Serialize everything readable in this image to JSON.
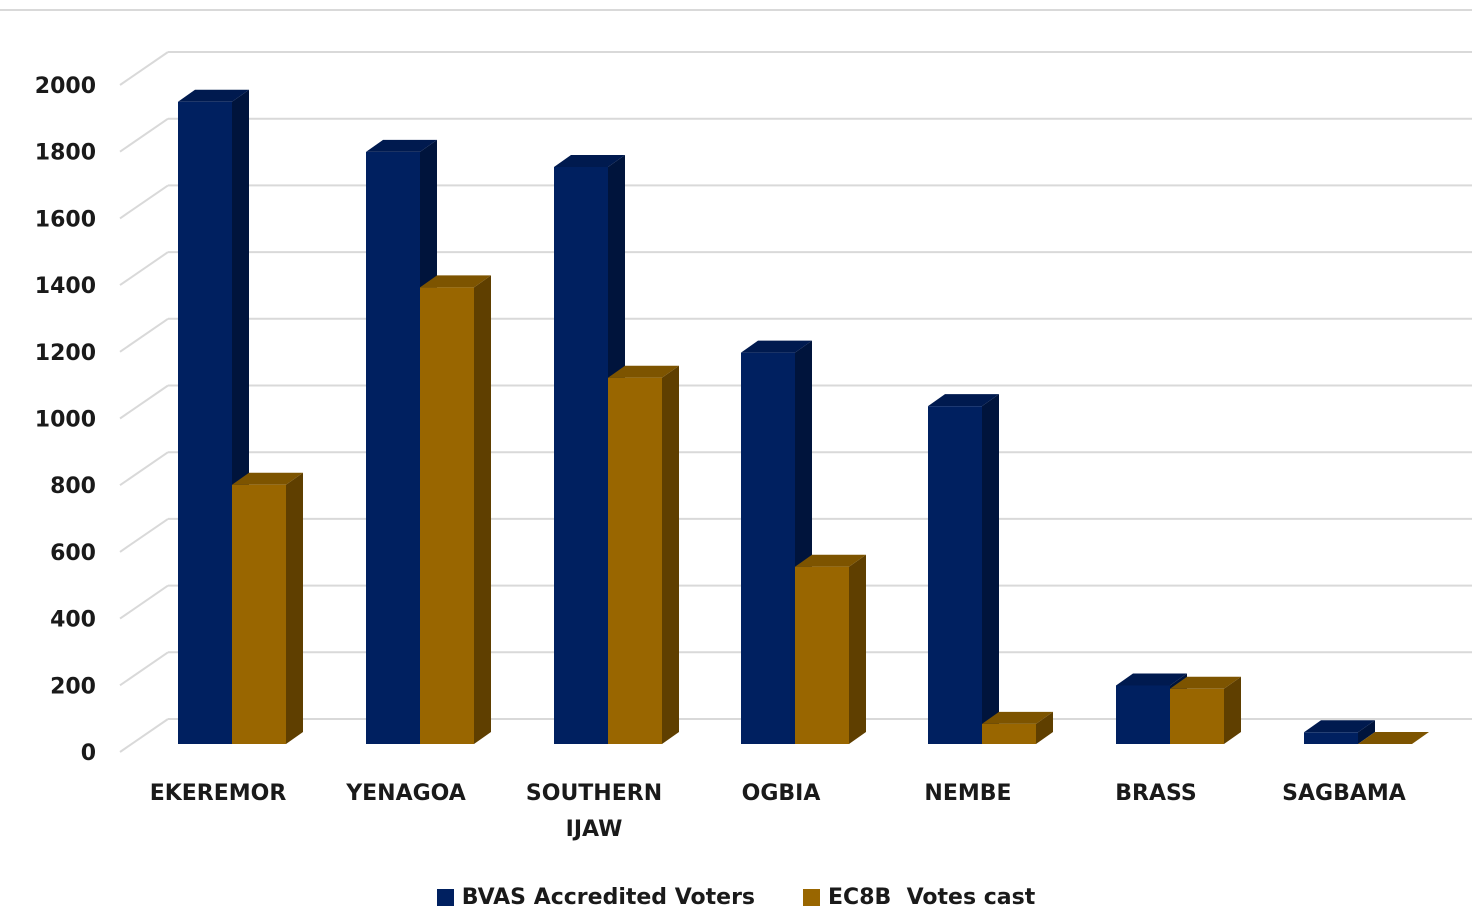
{
  "chart_data": {
    "type": "bar",
    "style": "3d-clustered-column",
    "categories": [
      "EKEREMOR",
      "YENAGOA",
      "SOUTHERN IJAW",
      "OGBIA",
      "NEMBE",
      "BRASS",
      "SAGBAMA"
    ],
    "series": [
      {
        "name": "BVAS Accredited Voters",
        "color": "#002060",
        "values": [
          1920,
          1770,
          1725,
          1170,
          1010,
          175,
          35
        ]
      },
      {
        "name": "EC8B  Votes cast",
        "color": "#996600",
        "values": [
          775,
          1365,
          1095,
          530,
          60,
          165,
          0
        ]
      }
    ],
    "y_ticks": [
      "0",
      "200",
      "400",
      "600",
      "800",
      "1000",
      "1200",
      "1400",
      "1600",
      "1800",
      "2000"
    ],
    "ylim": [
      0,
      2000
    ],
    "grid": true,
    "legend_position": "bottom"
  }
}
